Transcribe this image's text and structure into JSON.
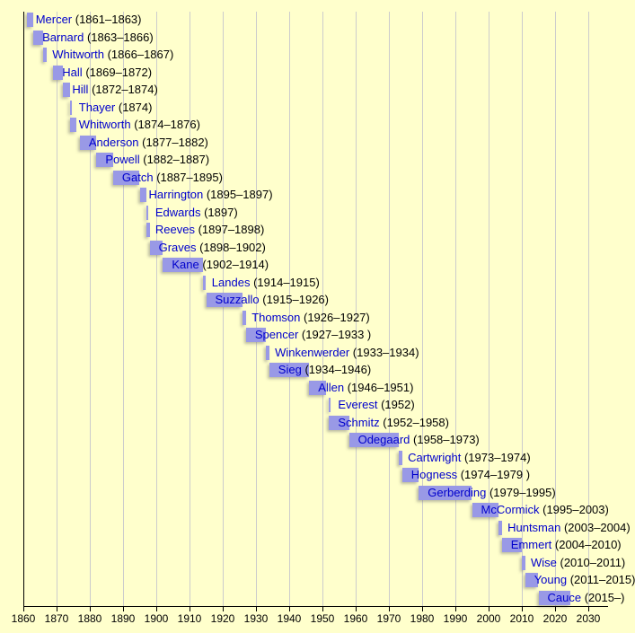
{
  "chart_data": {
    "type": "timeline",
    "title": "",
    "x_axis": {
      "range": [
        1860,
        2030
      ],
      "tick_years": [
        1860,
        1870,
        1880,
        1890,
        1900,
        1910,
        1920,
        1930,
        1940,
        1950,
        1960,
        1970,
        1980,
        1990,
        2000,
        2010,
        2020,
        2030
      ]
    },
    "entries": [
      {
        "name": "Mercer",
        "years_label": "(1861–1863)",
        "start": 1861,
        "end": 1863
      },
      {
        "name": "Barnard",
        "years_label": "(1863–1866)",
        "start": 1863,
        "end": 1866
      },
      {
        "name": "Whitworth",
        "years_label": "(1866–1867)",
        "start": 1866,
        "end": 1867
      },
      {
        "name": "Hall",
        "years_label": "(1869–1872)",
        "start": 1869,
        "end": 1872
      },
      {
        "name": "Hill",
        "years_label": "(1872–1874)",
        "start": 1872,
        "end": 1874
      },
      {
        "name": "Thayer",
        "years_label": "(1874)",
        "start": 1874,
        "end": 1874
      },
      {
        "name": "Whitworth",
        "years_label": "(1874–1876)",
        "start": 1874,
        "end": 1876
      },
      {
        "name": "Anderson",
        "years_label": "(1877–1882)",
        "start": 1877,
        "end": 1882
      },
      {
        "name": "Powell",
        "years_label": "(1882–1887)",
        "start": 1882,
        "end": 1887
      },
      {
        "name": "Gatch",
        "years_label": "(1887–1895)",
        "start": 1887,
        "end": 1895
      },
      {
        "name": "Harrington",
        "years_label": "(1895–1897)",
        "start": 1895,
        "end": 1897
      },
      {
        "name": "Edwards",
        "years_label": "(1897)",
        "start": 1897,
        "end": 1897
      },
      {
        "name": "Reeves",
        "years_label": "(1897–1898)",
        "start": 1897,
        "end": 1898
      },
      {
        "name": "Graves",
        "years_label": "(1898–1902)",
        "start": 1898,
        "end": 1902
      },
      {
        "name": "Kane",
        "years_label": "(1902–1914)",
        "start": 1902,
        "end": 1914
      },
      {
        "name": "Landes",
        "years_label": "(1914–1915)",
        "start": 1914,
        "end": 1915
      },
      {
        "name": "Suzzallo",
        "years_label": "(1915–1926)",
        "start": 1915,
        "end": 1926
      },
      {
        "name": "Thomson",
        "years_label": "(1926–1927)",
        "start": 1926,
        "end": 1927
      },
      {
        "name": "Spencer",
        "years_label": "(1927–1933 )",
        "start": 1927,
        "end": 1933
      },
      {
        "name": "Winkenwerder",
        "years_label": "(1933–1934)",
        "start": 1933,
        "end": 1934
      },
      {
        "name": "Sieg",
        "years_label": "(1934–1946)",
        "start": 1934,
        "end": 1946
      },
      {
        "name": "Allen",
        "years_label": "(1946–1951)",
        "start": 1946,
        "end": 1951
      },
      {
        "name": "Everest",
        "years_label": "(1952)",
        "start": 1952,
        "end": 1952
      },
      {
        "name": "Schmitz",
        "years_label": "(1952–1958)",
        "start": 1952,
        "end": 1958
      },
      {
        "name": "Odegaard",
        "years_label": "(1958–1973)",
        "start": 1958,
        "end": 1973
      },
      {
        "name": "Cartwright",
        "years_label": "(1973–1974)",
        "start": 1973,
        "end": 1974
      },
      {
        "name": "Hogness",
        "years_label": "(1974–1979 )",
        "start": 1974,
        "end": 1979
      },
      {
        "name": "Gerberding",
        "years_label": "(1979–1995)",
        "start": 1979,
        "end": 1995
      },
      {
        "name": "McCormick",
        "years_label": "(1995–2003)",
        "start": 1995,
        "end": 2003
      },
      {
        "name": "Huntsman",
        "years_label": "(2003–2004)",
        "start": 2003,
        "end": 2004
      },
      {
        "name": "Emmert",
        "years_label": "(2004–2010)",
        "start": 2004,
        "end": 2010
      },
      {
        "name": "Wise",
        "years_label": "(2010–2011)",
        "start": 2010,
        "end": 2011
      },
      {
        "name": "Young",
        "years_label": "(2011–2015)",
        "start": 2011,
        "end": 2015
      },
      {
        "name": "Cauce",
        "years_label": "(2015–)",
        "start": 2015,
        "end": 2024.5
      }
    ]
  },
  "colors": {
    "background": "#FFFFCC",
    "bar": "#9999E6",
    "name_text": "#0000CC",
    "years_text": "#000000",
    "gridline": "#CCCCCC",
    "axis": "#000000"
  }
}
